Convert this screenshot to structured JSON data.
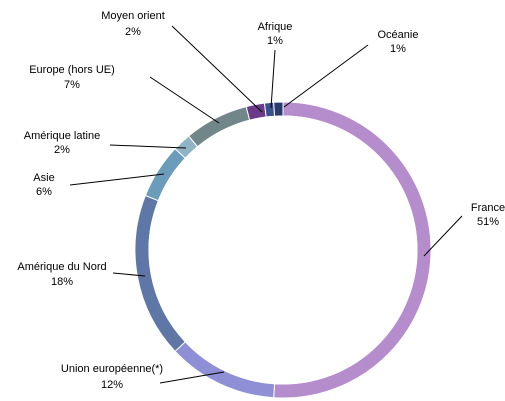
{
  "chart_data": {
    "type": "donut",
    "categories": [
      "France",
      "Union européenne(*)",
      "Amérique du Nord",
      "Asie",
      "Amérique latine",
      "Europe (hors UE)",
      "Moyen orient",
      "Afrique",
      "Océanie"
    ],
    "values": [
      51,
      12,
      18,
      6,
      2,
      7,
      2,
      1,
      1
    ],
    "value_labels": [
      "51%",
      "12%",
      "18%",
      "6%",
      "2%",
      "7%",
      "2%",
      "1%",
      "1%"
    ],
    "colors": [
      "#b58ccc",
      "#8f8fd6",
      "#5f77a6",
      "#6b9dbb",
      "#8eb4c6",
      "#708689",
      "#6b3a8a",
      "#3b4f8c",
      "#2a3a6a"
    ]
  }
}
